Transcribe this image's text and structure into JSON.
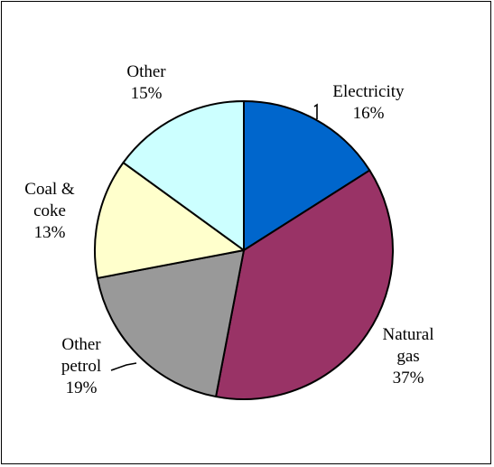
{
  "chart_data": {
    "type": "pie",
    "title": "",
    "slices": [
      {
        "name": "Electricity",
        "value": 16,
        "label_lines": [
          "Electricity",
          "16%"
        ],
        "color": "#0066CC"
      },
      {
        "name": "Natural gas",
        "value": 37,
        "label_lines": [
          "Natural",
          "gas",
          "37%"
        ],
        "color": "#993366"
      },
      {
        "name": "Other petrol",
        "value": 19,
        "label_lines": [
          "Other",
          "petrol",
          "19%"
        ],
        "color": "#999999"
      },
      {
        "name": "Coal & coke",
        "value": 13,
        "label_lines": [
          "Coal &",
          "coke",
          "13%"
        ],
        "color": "#FFFFCC"
      },
      {
        "name": "Other",
        "value": 15,
        "label_lines": [
          "Other",
          "15%"
        ],
        "color": "#CCFFFF"
      }
    ],
    "start": "12 o'clock",
    "direction": "clockwise",
    "legend": "none"
  }
}
